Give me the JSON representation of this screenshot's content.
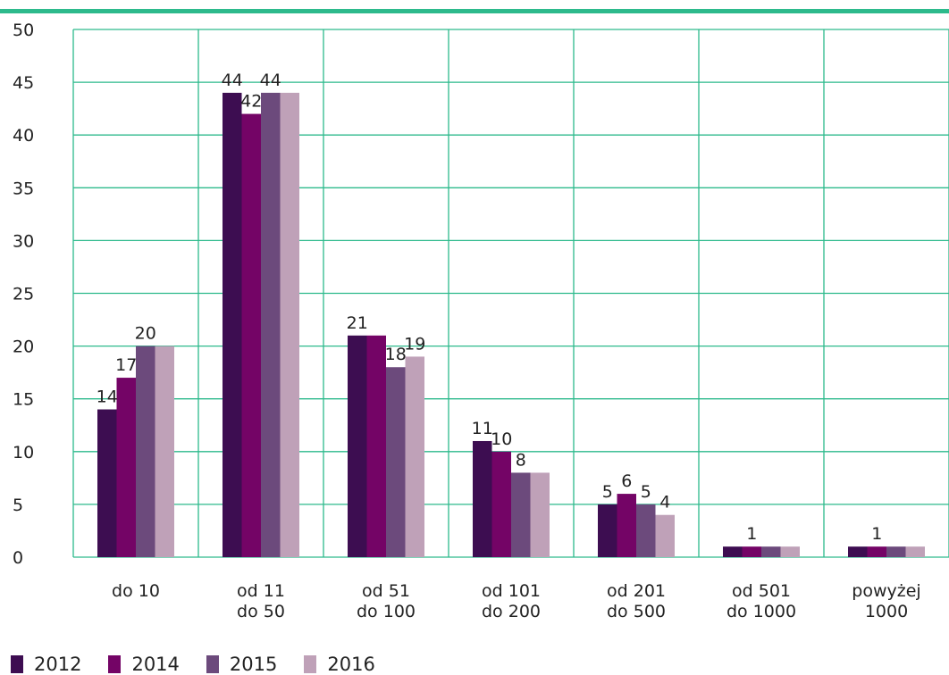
{
  "chart_data": {
    "type": "bar",
    "categories": [
      [
        "do 10"
      ],
      [
        "od 11",
        "do 50"
      ],
      [
        "od 51",
        "do 100"
      ],
      [
        "od 101",
        "do 200"
      ],
      [
        "od 201",
        "do 500"
      ],
      [
        "od 501",
        "do 1000"
      ],
      [
        "powyżej",
        "1000"
      ]
    ],
    "series": [
      {
        "name": "2012",
        "color": "#3d0d51",
        "values": [
          14,
          44,
          21,
          11,
          5,
          1,
          1
        ]
      },
      {
        "name": "2014",
        "color": "#740466",
        "values": [
          17,
          42,
          21,
          10,
          6,
          1,
          1
        ]
      },
      {
        "name": "2015",
        "color": "#6c4a7c",
        "values": [
          20,
          44,
          18,
          8,
          5,
          1,
          1
        ]
      },
      {
        "name": "2016",
        "color": "#bfa1b8",
        "values": [
          20,
          44,
          19,
          8,
          4,
          1,
          1
        ]
      }
    ],
    "data_labels": [
      [
        14,
        17,
        20,
        null
      ],
      [
        44,
        42,
        44,
        null
      ],
      [
        21,
        null,
        18,
        19
      ],
      [
        11,
        10,
        8,
        null
      ],
      [
        5,
        6,
        5,
        4
      ],
      [
        null,
        1,
        null,
        null
      ],
      [
        null,
        1,
        null,
        null
      ]
    ],
    "y_ticks": [
      "0",
      "5",
      "10",
      "15",
      "20",
      "25",
      "30",
      "35",
      "40",
      "45",
      "50"
    ],
    "ylim": [
      0,
      50
    ],
    "title": "",
    "xlabel": "",
    "ylabel": "",
    "grid": true,
    "legend_position": "bottom-left",
    "accent_rule_color": "#2dba8c"
  }
}
